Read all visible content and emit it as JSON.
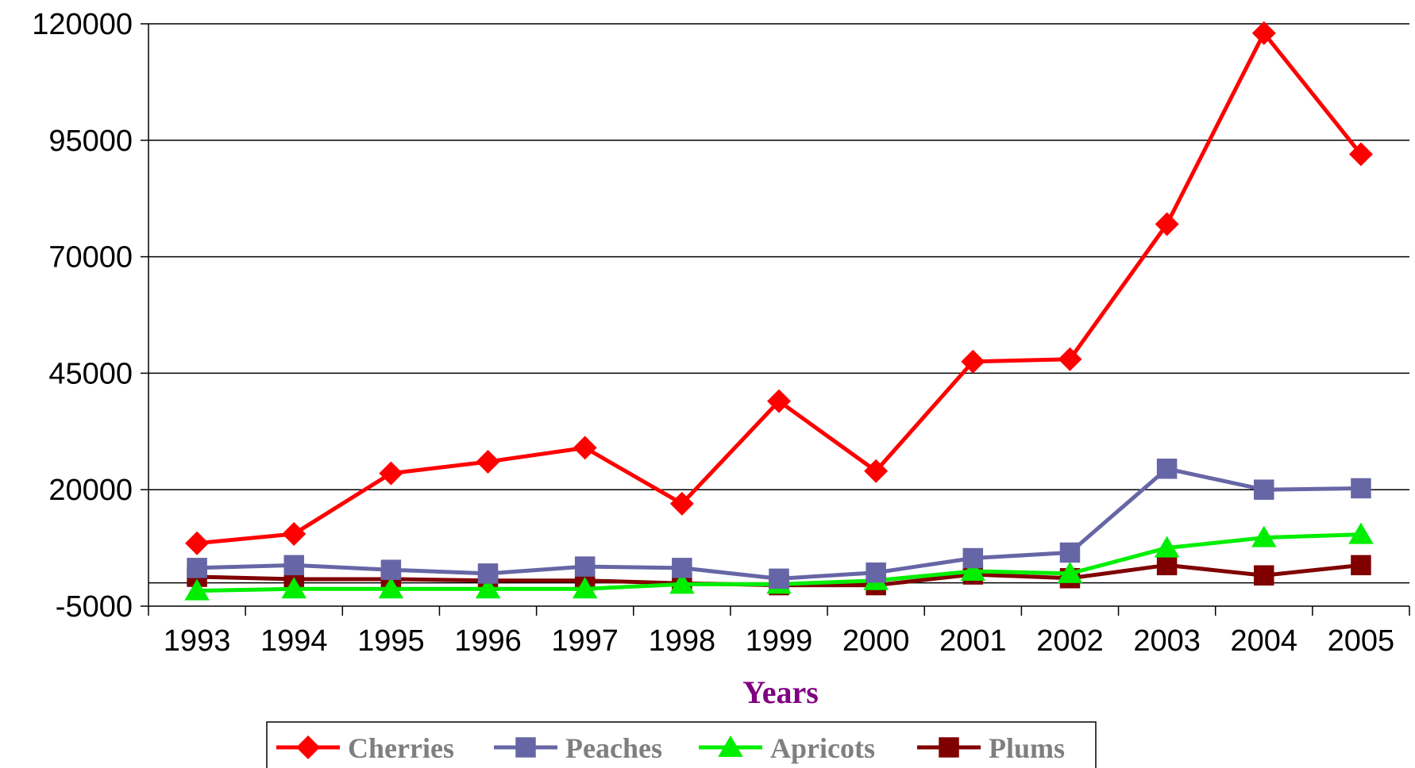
{
  "chart_data": {
    "type": "line",
    "x": [
      "1993",
      "1994",
      "1995",
      "1996",
      "1997",
      "1998",
      "1999",
      "2000",
      "2001",
      "2002",
      "2003",
      "2004",
      "2005"
    ],
    "xlabel": "Years",
    "ylabel": "",
    "title": "",
    "ylim": [
      -5000,
      120000
    ],
    "yticks": [
      "120000",
      "95000",
      "70000",
      "45000",
      "20000",
      "-5000"
    ],
    "grid": "horizontal",
    "legend_position": "bottom",
    "xlabel_color": "#800080",
    "series": [
      {
        "name": "Cherries",
        "color": "#ff0000",
        "marker": "diamond",
        "values": [
          8500,
          10500,
          23500,
          26000,
          29000,
          17000,
          39000,
          24000,
          47500,
          48000,
          77000,
          118000,
          92000
        ]
      },
      {
        "name": "Peaches",
        "color": "#6666a6",
        "marker": "square",
        "values": [
          3200,
          3800,
          2800,
          2000,
          3500,
          3200,
          900,
          2200,
          5300,
          6500,
          24500,
          20000,
          20300
        ]
      },
      {
        "name": "Apricots",
        "color": "#00ee00",
        "marker": "triangle",
        "values": [
          -1700,
          -1300,
          -1300,
          -1300,
          -1300,
          -300,
          -300,
          500,
          2500,
          2000,
          7500,
          9700,
          10400
        ]
      },
      {
        "name": "Plums",
        "color": "#800000",
        "marker": "square",
        "values": [
          1300,
          800,
          800,
          500,
          500,
          -100,
          -500,
          -500,
          1800,
          1000,
          3800,
          1600,
          3800
        ]
      }
    ]
  }
}
